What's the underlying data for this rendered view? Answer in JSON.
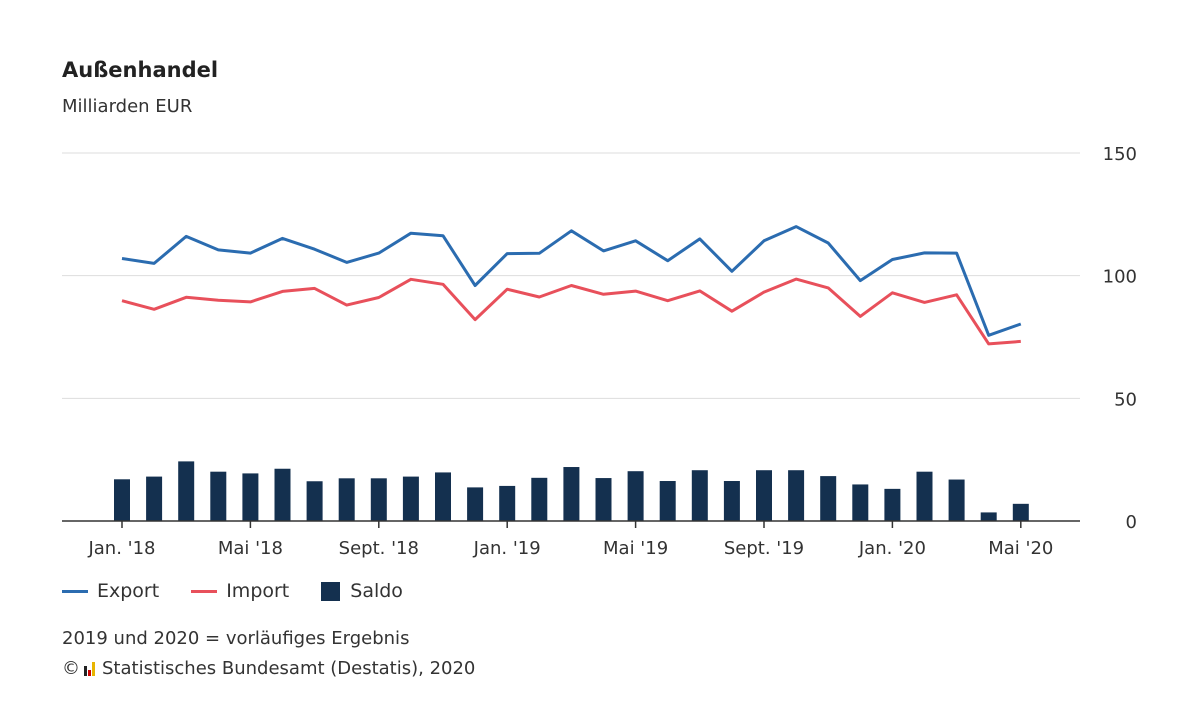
{
  "colors": {
    "export": "#2b6cb0",
    "import": "#e8505b",
    "saldo": "#14304f",
    "grid": "#dddddd",
    "axis": "#333333"
  },
  "chart_data": {
    "type": "line+bar",
    "title": "Außenhandel",
    "subtitle": "Milliarden EUR",
    "y_ticks": [
      0,
      50,
      100,
      150
    ],
    "ylim": [
      0,
      150
    ],
    "x_tick_labels": [
      {
        "index": 0,
        "label": "Jan. '18"
      },
      {
        "index": 4,
        "label": "Mai '18"
      },
      {
        "index": 8,
        "label": "Sept. '18"
      },
      {
        "index": 12,
        "label": "Jan. '19"
      },
      {
        "index": 16,
        "label": "Mai '19"
      },
      {
        "index": 20,
        "label": "Sept. '19"
      },
      {
        "index": 24,
        "label": "Jan. '20"
      },
      {
        "index": 28,
        "label": "Mai '20"
      }
    ],
    "months": [
      "Jan. '18",
      "Feb. '18",
      "Mrz. '18",
      "Apr. '18",
      "Mai '18",
      "Jun. '18",
      "Jul. '18",
      "Aug. '18",
      "Sept. '18",
      "Okt. '18",
      "Nov. '18",
      "Dez. '18",
      "Jan. '19",
      "Feb. '19",
      "Mrz. '19",
      "Apr. '19",
      "Mai '19",
      "Jun. '19",
      "Jul. '19",
      "Aug. '19",
      "Sept. '19",
      "Okt. '19",
      "Nov. '19",
      "Dez. '19",
      "Jan. '20",
      "Feb. '20",
      "Mrz. '20",
      "Apr. '20",
      "Mai '20"
    ],
    "series": [
      {
        "name": "Export",
        "kind": "line",
        "values": [
          107,
          105,
          116,
          110.5,
          109.2,
          115.2,
          110.8,
          105.4,
          109.2,
          117.3,
          116.3,
          96,
          109,
          109.1,
          118.3,
          110.1,
          114.2,
          106.1,
          115,
          101.8,
          114.2,
          120,
          113.3,
          98,
          106.6,
          109.3,
          109.2,
          75.7,
          80.3
        ]
      },
      {
        "name": "Import",
        "kind": "line",
        "values": [
          89.8,
          86.3,
          91.2,
          90,
          89.3,
          93.6,
          94.8,
          88,
          91.1,
          98.5,
          96.5,
          82.1,
          94.5,
          91.3,
          96,
          92.4,
          93.7,
          89.8,
          93.8,
          85.5,
          93.3,
          98.6,
          95,
          83.4,
          93,
          89.1,
          92.2,
          72.2,
          73.2
        ]
      },
      {
        "name": "Saldo",
        "kind": "bar",
        "values": [
          17,
          18.1,
          24.3,
          20.1,
          19.4,
          21.3,
          16.2,
          17.4,
          17.4,
          18.1,
          19.8,
          13.7,
          14.3,
          17.6,
          22,
          17.5,
          20.3,
          16.3,
          20.7,
          16.3,
          20.7,
          20.7,
          18.3,
          14.9,
          13.1,
          20.1,
          16.9,
          3.5,
          7
        ]
      }
    ]
  },
  "legend": {
    "export": "Export",
    "import": "Import",
    "saldo": "Saldo"
  },
  "footer": {
    "note": "2019 und 2020 = vorläufiges Ergebnis",
    "copyright": "©",
    "source": "Statistisches Bundesamt (Destatis), 2020"
  }
}
